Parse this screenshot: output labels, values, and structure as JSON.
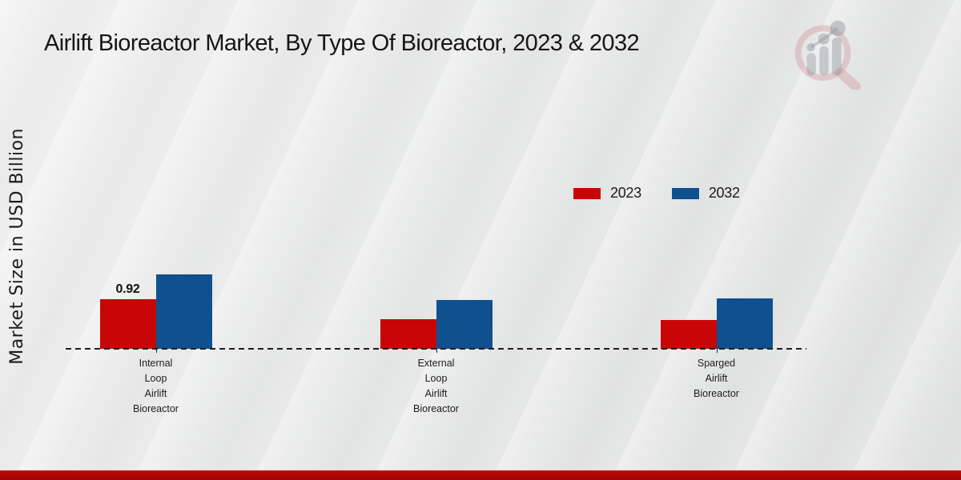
{
  "header": {
    "title": "Airlift Bioreactor Market, By Type Of Bioreactor, 2023 & 2032"
  },
  "watermark": {
    "name": "market-research-growth-chart-logo"
  },
  "chart_data": {
    "type": "bar",
    "title": "Airlift Bioreactor Market, By Type Of Bioreactor, 2023 & 2032",
    "xlabel": "",
    "ylabel": "Market Size in USD Billion",
    "categories": [
      "Internal Loop Airlift Bioreactor",
      "External Loop Airlift Bioreactor",
      "Sparged Airlift Bioreactor"
    ],
    "category_label_lines": [
      [
        "Internal",
        "Loop",
        "Airlift",
        "Bioreactor"
      ],
      [
        "External",
        "Loop",
        "Airlift",
        "Bioreactor"
      ],
      [
        "Sparged",
        "Airlift",
        "Bioreactor"
      ]
    ],
    "series": [
      {
        "name": "2023",
        "color": "#c90606",
        "values": [
          0.92,
          0.55,
          0.53
        ]
      },
      {
        "name": "2032",
        "color": "#0f508f",
        "values": [
          1.38,
          0.91,
          0.93
        ]
      }
    ],
    "value_labels": [
      {
        "series_index": 0,
        "category_index": 0,
        "text": "0.92"
      }
    ],
    "ylim": [
      0,
      1.5
    ],
    "grid": false,
    "baseline_style": "dashed",
    "legend_position": "inside-upper-right"
  }
}
